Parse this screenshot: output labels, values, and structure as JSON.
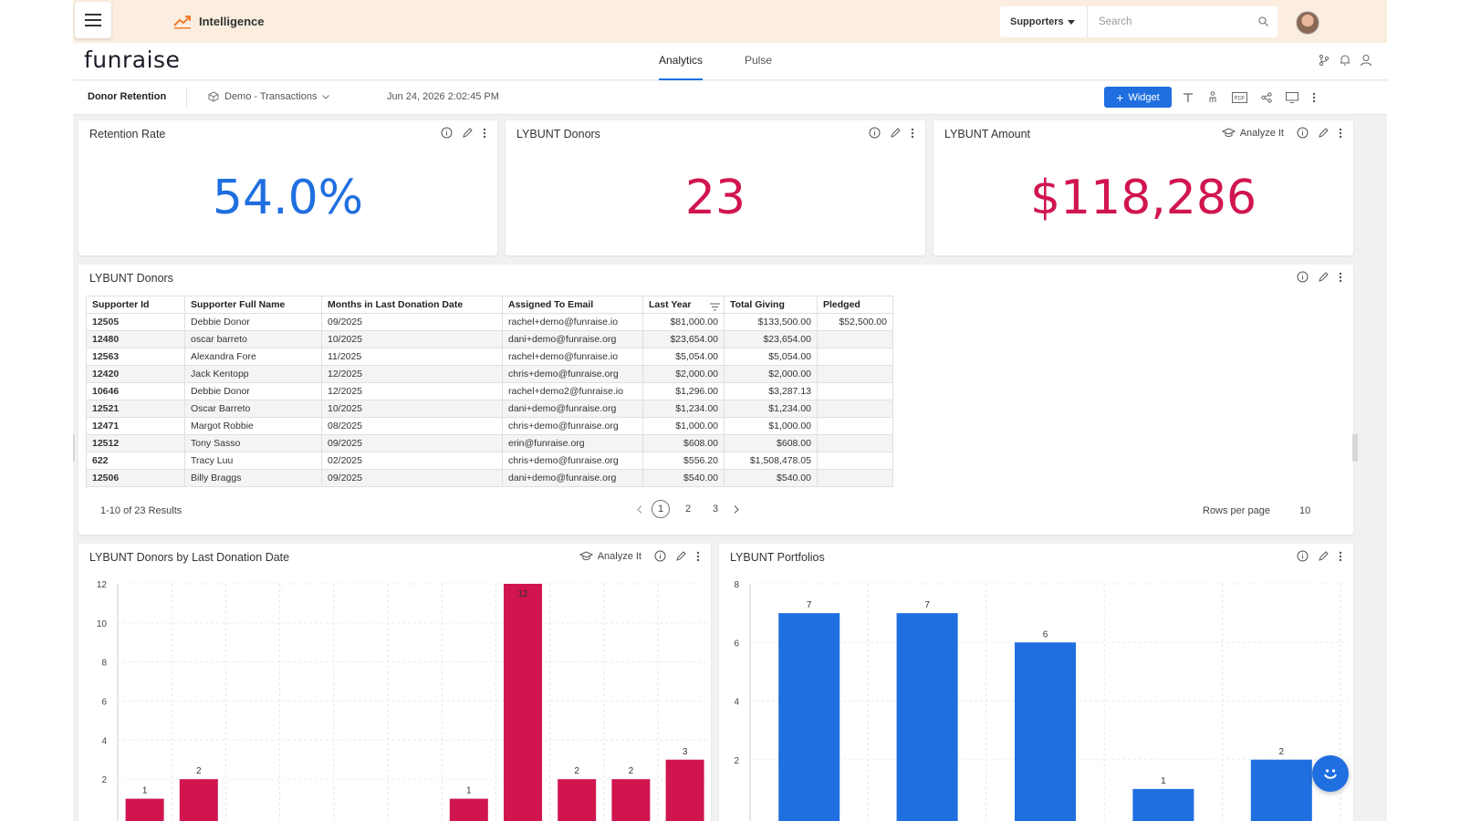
{
  "app": {
    "title": "Intelligence",
    "logo": "funraise"
  },
  "topbar": {
    "supporters_label": "Supporters",
    "search_placeholder": "Search"
  },
  "nav": {
    "tabs": [
      {
        "label": "Analytics",
        "active": true
      },
      {
        "label": "Pulse",
        "active": false
      }
    ]
  },
  "dashboard": {
    "title": "Donor Retention",
    "dataset": "Demo - Transactions",
    "timestamp": "Jun 24, 2026 2:02:45 PM",
    "widget_button": "Widget"
  },
  "kpis": [
    {
      "title": "Retention Rate",
      "value": "54.0%"
    },
    {
      "title": "LYBUNT Donors",
      "value": "23"
    },
    {
      "title": "LYBUNT Amount",
      "value": "$118,286",
      "analyze": "Analyze It"
    }
  ],
  "table": {
    "title": "LYBUNT Donors",
    "columns": [
      "Supporter Id",
      "Supporter Full Name",
      "Months in Last Donation Date",
      "Assigned To Email",
      "Last Year",
      "Total Giving",
      "Pledged"
    ],
    "rows": [
      [
        "12505",
        "Debbie Donor",
        "09/2025",
        "rachel+demo@funraise.io",
        "$81,000.00",
        "$133,500.00",
        "$52,500.00"
      ],
      [
        "12480",
        "oscar barreto",
        "10/2025",
        "dani+demo@funraise.org",
        "$23,654.00",
        "$23,654.00",
        ""
      ],
      [
        "12563",
        "Alexandra Fore",
        "11/2025",
        "rachel+demo@funraise.io",
        "$5,054.00",
        "$5,054.00",
        ""
      ],
      [
        "12420",
        "Jack Kentopp",
        "12/2025",
        "chris+demo@funraise.org",
        "$2,000.00",
        "$2,000.00",
        ""
      ],
      [
        "10646",
        "Debbie Donor",
        "12/2025",
        "rachel+demo2@funraise.io",
        "$1,296.00",
        "$3,287.13",
        ""
      ],
      [
        "12521",
        "Oscar Barreto",
        "10/2025",
        "dani+demo@funraise.org",
        "$1,234.00",
        "$1,234.00",
        ""
      ],
      [
        "12471",
        "Margot Robbie",
        "08/2025",
        "chris+demo@funraise.org",
        "$1,000.00",
        "$1,000.00",
        ""
      ],
      [
        "12512",
        "Tony Sasso",
        "09/2025",
        "erin@funraise.org",
        "$608.00",
        "$608.00",
        ""
      ],
      [
        "622",
        "Tracy Luu",
        "02/2025",
        "chris+demo@funraise.org",
        "$556.20",
        "$1,508,478.05",
        ""
      ],
      [
        "12506",
        "Billy Braggs",
        "09/2025",
        "dani+demo@funraise.org",
        "$540.00",
        "$540.00",
        ""
      ]
    ],
    "results_text": "1-10 of 23 Results",
    "pages": [
      "1",
      "2",
      "3"
    ],
    "rows_per_page_label": "Rows per page",
    "rows_per_page_value": "10"
  },
  "charts": {
    "donation_date_title": "LYBUNT Donors by Last Donation Date",
    "donation_date_analyze": "Analyze It",
    "portfolios_title": "LYBUNT Portfolios"
  },
  "colors": {
    "primary": "#1f6fe0",
    "accent": "#d0154f",
    "topbar": "#fbeee0"
  },
  "chart_data": [
    {
      "type": "bar",
      "title": "LYBUNT Donors by Last Donation Date",
      "values": [
        1,
        2,
        null,
        null,
        null,
        null,
        1,
        12,
        2,
        2,
        3
      ],
      "ylim": [
        0,
        12
      ],
      "yticks": [
        2,
        4,
        6,
        8,
        10,
        12
      ],
      "color": "#d0154f"
    },
    {
      "type": "bar",
      "title": "LYBUNT Portfolios",
      "values": [
        7,
        7,
        6,
        1,
        2
      ],
      "ylim": [
        0,
        8
      ],
      "yticks": [
        2,
        4,
        6,
        8
      ],
      "color": "#1f6fe0"
    }
  ]
}
